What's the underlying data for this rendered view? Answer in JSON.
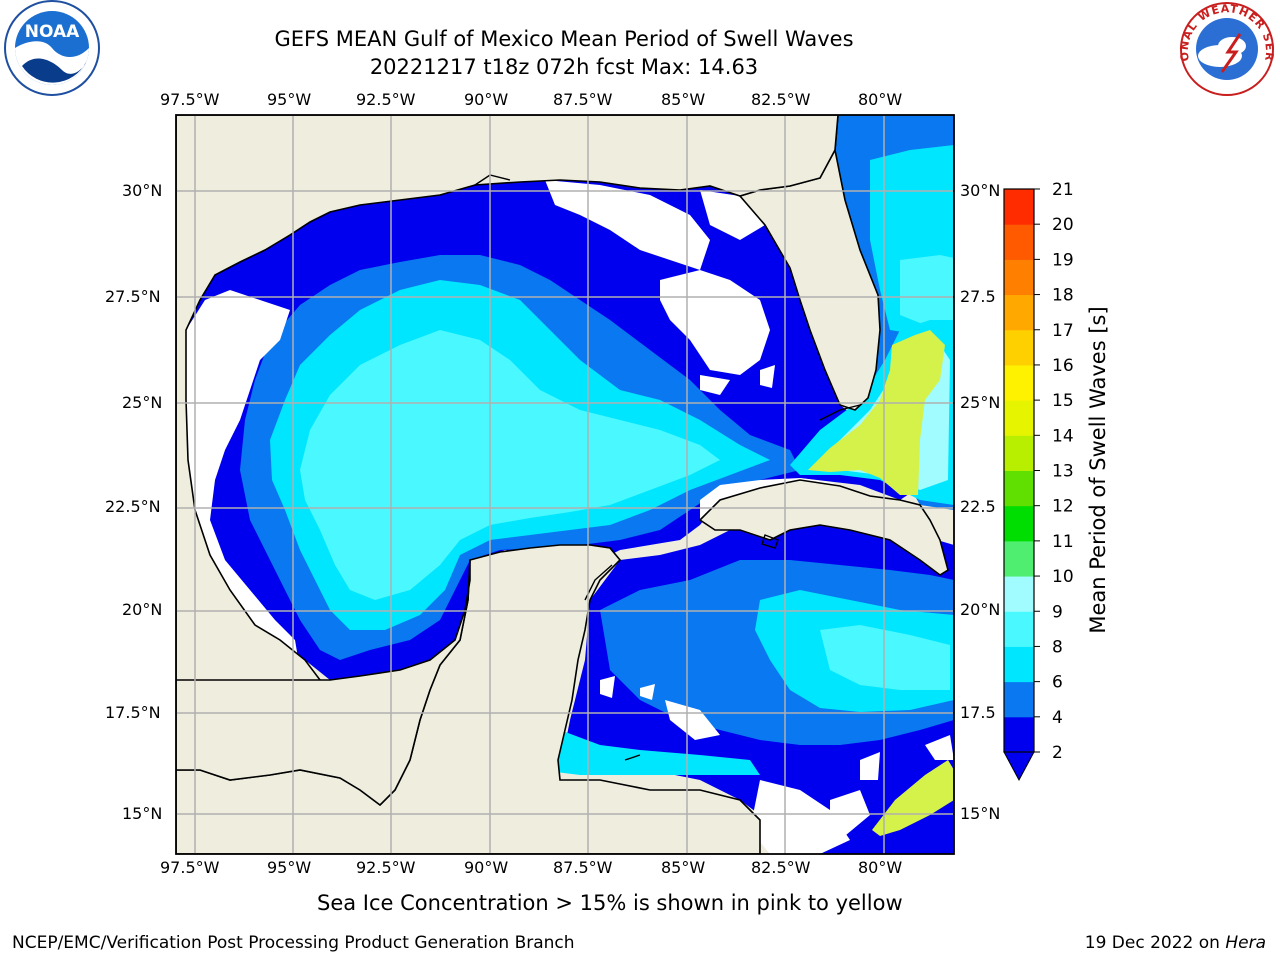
{
  "header": {
    "title_line1": "GEFS MEAN Gulf of Mexico Mean Period of Swell Waves",
    "title_line2": "20221217 t18z 072h fcst   Max: 14.63"
  },
  "logos": {
    "left": "NOAA",
    "right": "NATIONAL WEATHER SERVICE"
  },
  "map": {
    "lon_labels": [
      "97.5°W",
      "95°W",
      "92.5°W",
      "90°W",
      "87.5°W",
      "85°W",
      "82.5°W",
      "80°W"
    ],
    "lat_labels": [
      "30°N",
      "27.5°N",
      "25°N",
      "22.5°N",
      "20°N",
      "17.5°N",
      "15°N"
    ],
    "lat_labels_right": [
      "30°N",
      "27.5",
      "25°N",
      "22.5",
      "20°N",
      "17.5",
      "15°N"
    ],
    "lon_range": [
      -98,
      -79
    ],
    "lat_range": [
      14,
      31.5
    ],
    "land_color": "#eeedde",
    "grid_color": "#b0b0b0"
  },
  "colorbar": {
    "label": "Mean Period of Swell Waves [s]",
    "ticks": [
      "2",
      "4",
      "6",
      "8",
      "9",
      "10",
      "11",
      "12",
      "13",
      "14",
      "15",
      "16",
      "17",
      "18",
      "19",
      "20",
      "21"
    ],
    "levels": [
      {
        "value": 2,
        "color": "#0000ee"
      },
      {
        "value": 4,
        "color": "#0a78f0"
      },
      {
        "value": 6,
        "color": "#00e6ff"
      },
      {
        "value": 8,
        "color": "#4af8ff"
      },
      {
        "value": 9,
        "color": "#a0fcff"
      },
      {
        "value": 10,
        "color": "#50ee70"
      },
      {
        "value": 11,
        "color": "#00dd00"
      },
      {
        "value": 12,
        "color": "#60e000"
      },
      {
        "value": 13,
        "color": "#b8ee00"
      },
      {
        "value": 14,
        "color": "#e6f400"
      },
      {
        "value": 15,
        "color": "#fff200"
      },
      {
        "value": 16,
        "color": "#ffd000"
      },
      {
        "value": 17,
        "color": "#ffa800"
      },
      {
        "value": 18,
        "color": "#ff8000"
      },
      {
        "value": 19,
        "color": "#ff5a00"
      },
      {
        "value": 20,
        "color": "#ff2c00"
      }
    ]
  },
  "notes": {
    "ice": "Sea Ice Concentration > 15% is shown in pink to yellow"
  },
  "footer": {
    "left": "NCEP/EMC/Verification Post Processing Product Generation Branch",
    "right_prefix": "19 Dec 2022 on ",
    "right_host": "Hera"
  }
}
